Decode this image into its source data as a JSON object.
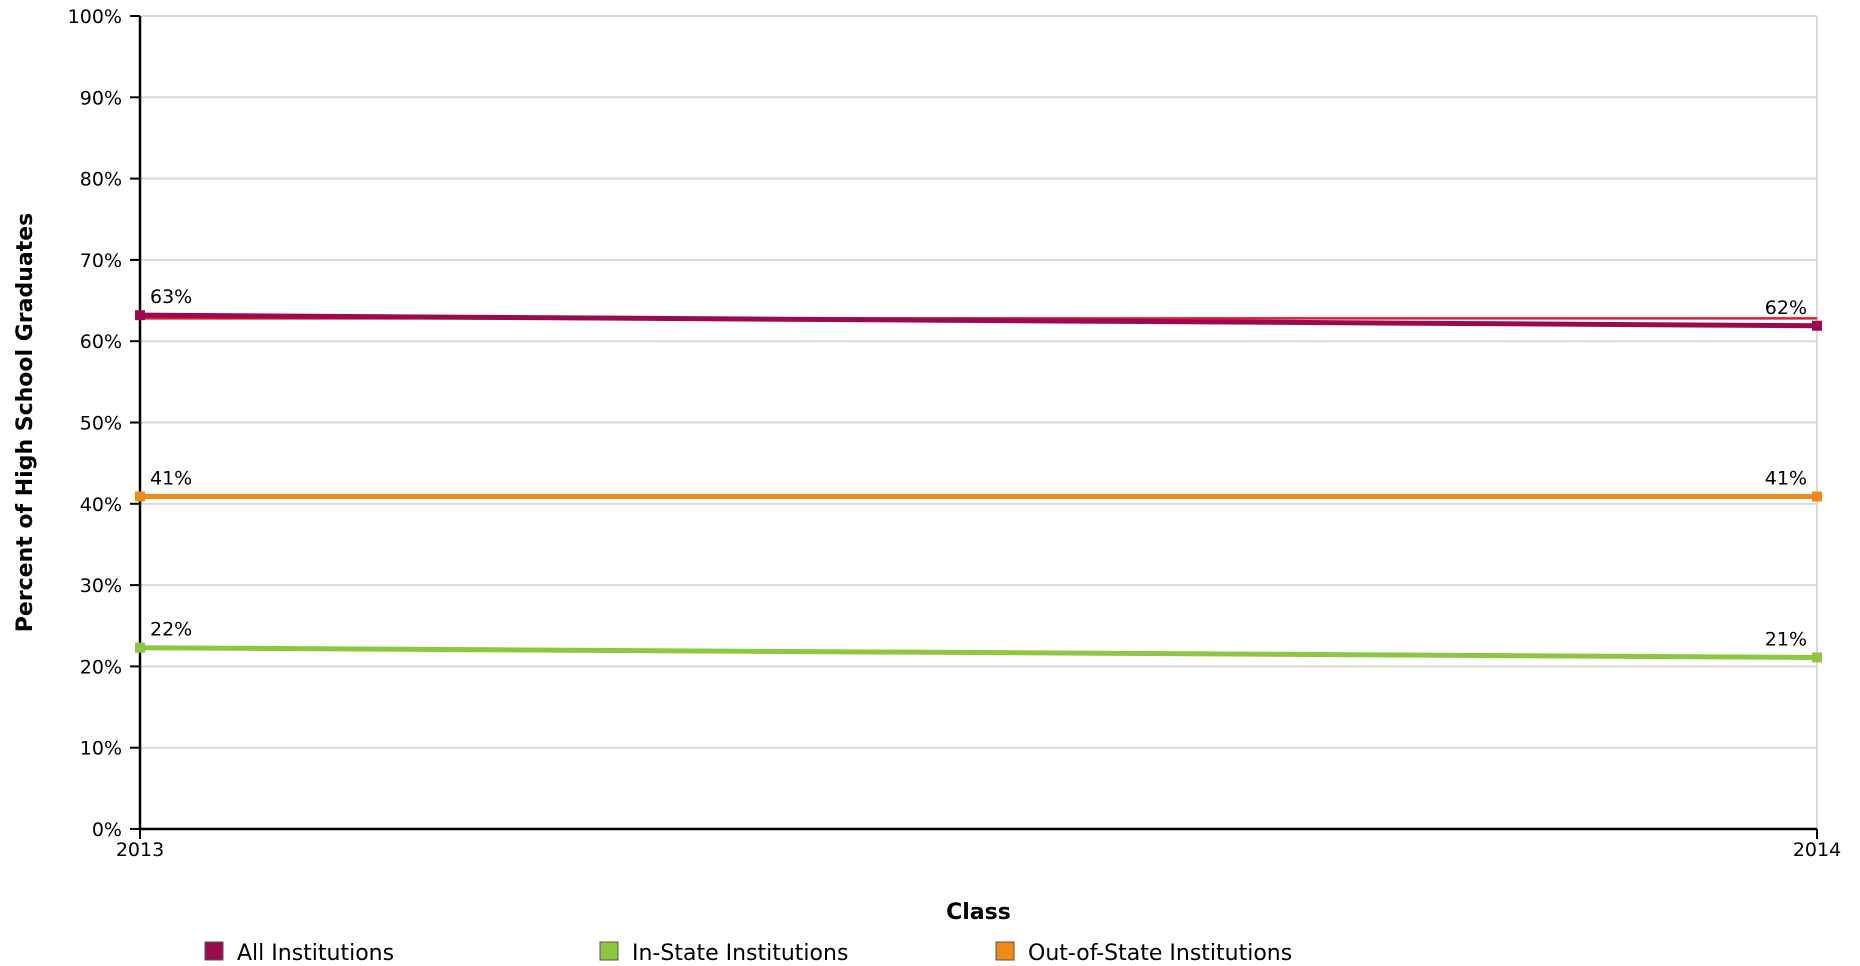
{
  "chart_data": {
    "type": "line",
    "title": "",
    "xlabel": "Class",
    "ylabel": "Percent of High School Graduates",
    "x": [
      "2013",
      "2014"
    ],
    "ylim": [
      0,
      100
    ],
    "yticks": [
      "0%",
      "10%",
      "20%",
      "30%",
      "40%",
      "50%",
      "60%",
      "70%",
      "80%",
      "90%",
      "100%"
    ],
    "grid": true,
    "legend_position": "bottom",
    "series": [
      {
        "name": "All Institutions",
        "color": "#9B0A4E",
        "values": [
          63.2,
          61.9
        ],
        "labels": [
          "63%",
          "62%"
        ]
      },
      {
        "name": "In-State Institutions",
        "color": "#8DC63F",
        "values": [
          22.3,
          21.1
        ],
        "labels": [
          "22%",
          "21%"
        ]
      },
      {
        "name": "Out-of-State Institutions",
        "color": "#F28A17",
        "values": [
          40.9,
          40.9
        ],
        "labels": [
          "41%",
          "41%"
        ]
      }
    ],
    "reference_line": {
      "color": "#E31A2D",
      "value": 62.8
    }
  }
}
